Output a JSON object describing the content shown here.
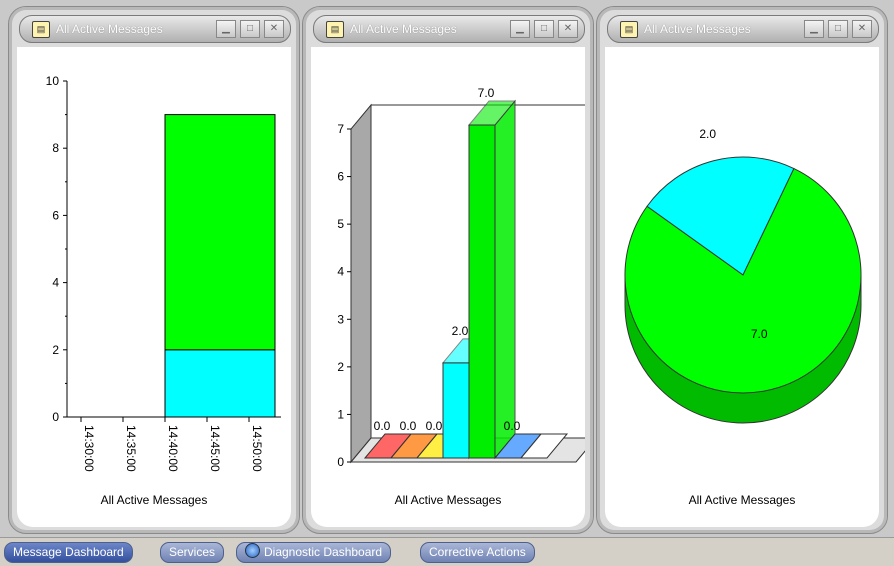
{
  "panels": [
    {
      "title": "All Active Messages",
      "icon": "address-book-icon",
      "caption": "All Active Messages",
      "chart_data": {
        "type": "bar",
        "stacked": true,
        "x_ticks": [
          "14:30:00",
          "14:35:00",
          "14:40:00",
          "14:45:00",
          "14:50:00"
        ],
        "y_ticks": [
          "0",
          "2",
          "4",
          "6",
          "8",
          "10"
        ],
        "ylim": [
          0,
          10
        ],
        "bars": [
          {
            "x_start": "14:40:00",
            "x_end": "14:50:00",
            "segments": [
              {
                "value": 2,
                "color": "#00ffff"
              },
              {
                "value": 7,
                "color": "#00ff00"
              }
            ]
          }
        ]
      }
    },
    {
      "title": "All Active Messages",
      "icon": "address-book-icon",
      "caption": "All Active Messages",
      "chart_data": {
        "type": "bar",
        "style": "3d",
        "y_ticks": [
          "0",
          "1",
          "2",
          "3",
          "4",
          "5",
          "6",
          "7"
        ],
        "ylim": [
          0,
          7
        ],
        "bars": [
          {
            "value": 0.0,
            "label": "0.0",
            "color": "#ff6666"
          },
          {
            "value": 0.0,
            "label": "0.0",
            "color": "#ff9944"
          },
          {
            "value": 0.0,
            "label": "0.0",
            "color": "#ffee44"
          },
          {
            "value": 2.0,
            "label": "2.0",
            "color": "#00ffff"
          },
          {
            "value": 7.0,
            "label": "7.0",
            "color": "#00ee00"
          },
          {
            "value": 0.0,
            "label": "0.0",
            "color": "#66aaff"
          },
          {
            "value": 0.0,
            "label": "",
            "color": "#ffffff"
          }
        ]
      }
    },
    {
      "title": "All Active Messages",
      "icon": "address-book-icon",
      "caption": "All Active Messages",
      "chart_data": {
        "type": "pie",
        "style": "3d",
        "slices": [
          {
            "value": 2.0,
            "label": "2.0",
            "color": "#00ffff"
          },
          {
            "value": 7.0,
            "label": "7.0",
            "color": "#00ff00"
          }
        ]
      }
    }
  ],
  "tabs": [
    {
      "label": "Message Dashboard",
      "active": true,
      "icon": ""
    },
    {
      "label": "Services",
      "active": false,
      "icon": ""
    },
    {
      "label": "Diagnostic Dashboard",
      "active": false,
      "icon": "globe-icon"
    },
    {
      "label": "Corrective Actions",
      "active": false,
      "icon": ""
    }
  ],
  "window_buttons": [
    "minimize-icon",
    "maximize-icon",
    "close-icon"
  ]
}
